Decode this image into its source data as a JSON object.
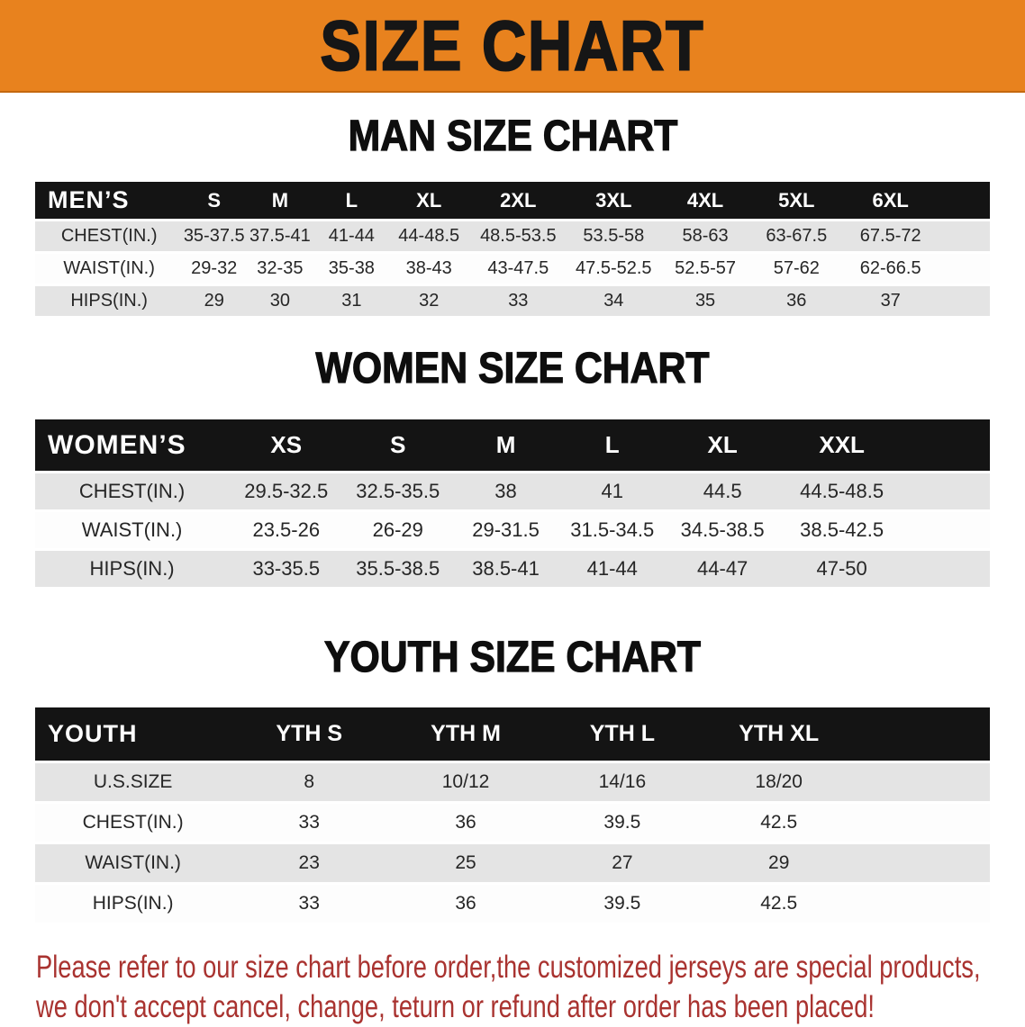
{
  "banner": {
    "title": "SIZE CHART",
    "bg_color": "#E8821E",
    "text_color": "#161616"
  },
  "colors": {
    "table_header_bg": "#141414",
    "table_header_text": "#FFFFFF",
    "row_shaded": "#E4E4E4",
    "row_plain": "#FDFDFD",
    "disclaimer_text": "#A93330"
  },
  "sections": {
    "men": {
      "heading": "MAN SIZE CHART",
      "table": {
        "label": "MEN’S",
        "sizes": [
          "S",
          "M",
          "L",
          "XL",
          "2XL",
          "3XL",
          "4XL",
          "5XL",
          "6XL"
        ],
        "rows": [
          {
            "label": "CHEST(IN.)",
            "values": [
              "35-37.5",
              "37.5-41",
              "41-44",
              "44-48.5",
              "48.5-53.5",
              "53.5-58",
              "58-63",
              "63-67.5",
              "67.5-72"
            ]
          },
          {
            "label": "WAIST(IN.)",
            "values": [
              "29-32",
              "32-35",
              "35-38",
              "38-43",
              "43-47.5",
              "47.5-52.5",
              "52.5-57",
              "57-62",
              "62-66.5"
            ]
          },
          {
            "label": "HIPS(IN.)",
            "values": [
              "29",
              "30",
              "31",
              "32",
              "33",
              "34",
              "35",
              "36",
              "37"
            ]
          }
        ]
      }
    },
    "women": {
      "heading": "WOMEN SIZE CHART",
      "table": {
        "label": "WOMEN’S",
        "sizes": [
          "XS",
          "S",
          "M",
          "L",
          "XL",
          "XXL"
        ],
        "rows": [
          {
            "label": "CHEST(IN.)",
            "values": [
              "29.5-32.5",
              "32.5-35.5",
              "38",
              "41",
              "44.5",
              "44.5-48.5"
            ]
          },
          {
            "label": "WAIST(IN.)",
            "values": [
              "23.5-26",
              "26-29",
              "29-31.5",
              "31.5-34.5",
              "34.5-38.5",
              "38.5-42.5"
            ]
          },
          {
            "label": "HIPS(IN.)",
            "values": [
              "33-35.5",
              "35.5-38.5",
              "38.5-41",
              "41-44",
              "44-47",
              "47-50"
            ]
          }
        ]
      }
    },
    "youth": {
      "heading": "YOUTH SIZE CHART",
      "table": {
        "label": "YOUTH",
        "sizes": [
          "YTH S",
          "YTH M",
          "YTH L",
          "YTH XL"
        ],
        "rows": [
          {
            "label": "U.S.SIZE",
            "values": [
              "8",
              "10/12",
              "14/16",
              "18/20"
            ]
          },
          {
            "label": "CHEST(IN.)",
            "values": [
              "33",
              "36",
              "39.5",
              "42.5"
            ]
          },
          {
            "label": "WAIST(IN.)",
            "values": [
              "23",
              "25",
              "27",
              "29"
            ]
          },
          {
            "label": "HIPS(IN.)",
            "values": [
              "33",
              "36",
              "39.5",
              "42.5"
            ]
          }
        ]
      }
    }
  },
  "disclaimer": {
    "line1": "Please refer to our size chart before order,the customized jerseys are special products,",
    "line2": "we don't accept cancel, change, teturn or refund after order has been placed!"
  }
}
